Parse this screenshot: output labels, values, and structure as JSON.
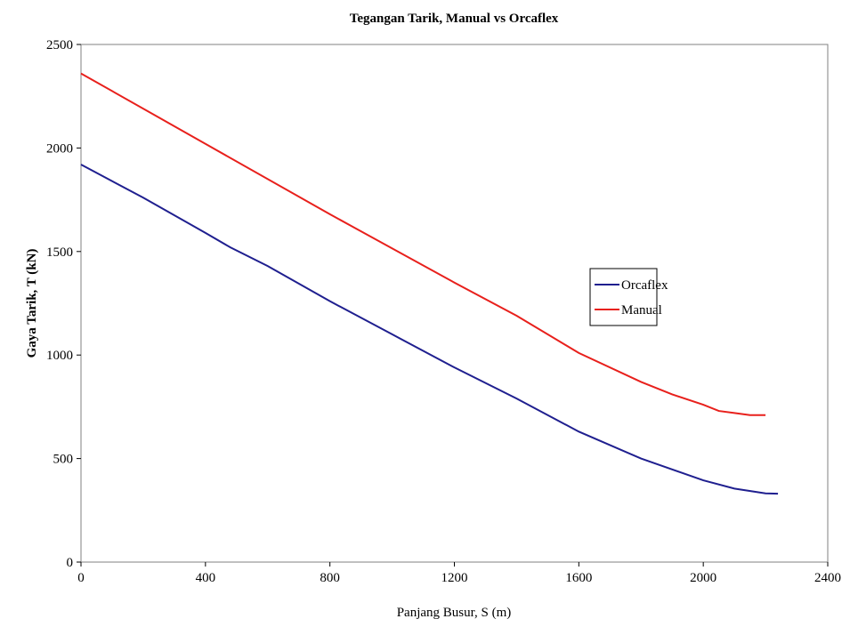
{
  "chart_data": {
    "type": "line",
    "title": "Tegangan Tarik, Manual vs Orcaflex",
    "x_label": "Panjang Busur, S (m)",
    "y_label": "Gaya Tarik, T (kN)",
    "xlim": [
      0,
      2400
    ],
    "xticks": [
      0,
      400,
      800,
      1200,
      1600,
      2000,
      2400
    ],
    "ylim": [
      0,
      2500
    ],
    "yticks": [
      0,
      500,
      1000,
      1500,
      2000,
      2500
    ],
    "grid": false,
    "legend": "right",
    "series": [
      {
        "name": "Orcaflex",
        "color": "#1f1f8f",
        "x": [
          0,
          200,
          400,
          480,
          600,
          800,
          1000,
          1200,
          1400,
          1600,
          1800,
          2000,
          2100,
          2200,
          2240
        ],
        "values": [
          1920,
          1760,
          1590,
          1520,
          1430,
          1260,
          1100,
          940,
          790,
          630,
          500,
          395,
          355,
          332,
          330
        ]
      },
      {
        "name": "Manual",
        "color": "#e8201c",
        "x": [
          0,
          400,
          800,
          1200,
          1400,
          1600,
          1800,
          1900,
          2000,
          2050,
          2100,
          2150,
          2200
        ],
        "values": [
          2360,
          2020,
          1680,
          1350,
          1190,
          1010,
          870,
          810,
          760,
          730,
          720,
          710,
          710
        ]
      }
    ]
  }
}
